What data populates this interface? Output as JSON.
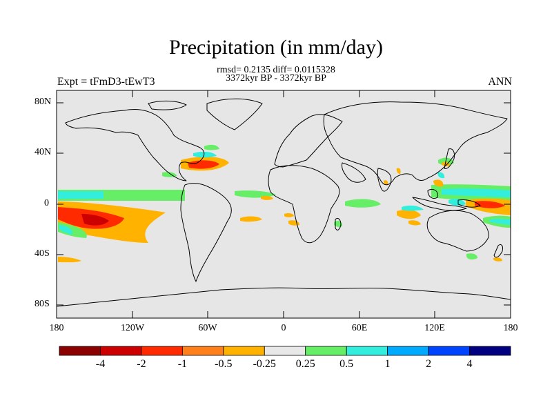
{
  "figure": {
    "title": "Precipitation (in mm/day)",
    "stats_line": "rmsd= 0.2135 diff= 0.0115328",
    "period_line": "3372kyr BP - 3372kyr BP",
    "left_label": "Expt = tFmD3-tEwT3",
    "right_label": "ANN"
  },
  "axes": {
    "lat_ticks": [
      "80N",
      "40N",
      "0",
      "40S",
      "80S"
    ],
    "lon_ticks": [
      "180",
      "120W",
      "60W",
      "0",
      "60E",
      "120E",
      "180"
    ]
  },
  "colorbar": {
    "levels": [
      "-4",
      "-2",
      "-1",
      "-0.5",
      "-0.25",
      "0.25",
      "0.5",
      "1",
      "2",
      "4"
    ],
    "colors": [
      "#8b0000",
      "#cc0000",
      "#ff2a00",
      "#ff7f1a",
      "#ffb300",
      "#e8e8e8",
      "#66ee66",
      "#33eedd",
      "#00aaff",
      "#0044ff",
      "#000080"
    ]
  },
  "map": {
    "background_color": "#e6e6e6",
    "land_outline_color": "#000000"
  }
}
